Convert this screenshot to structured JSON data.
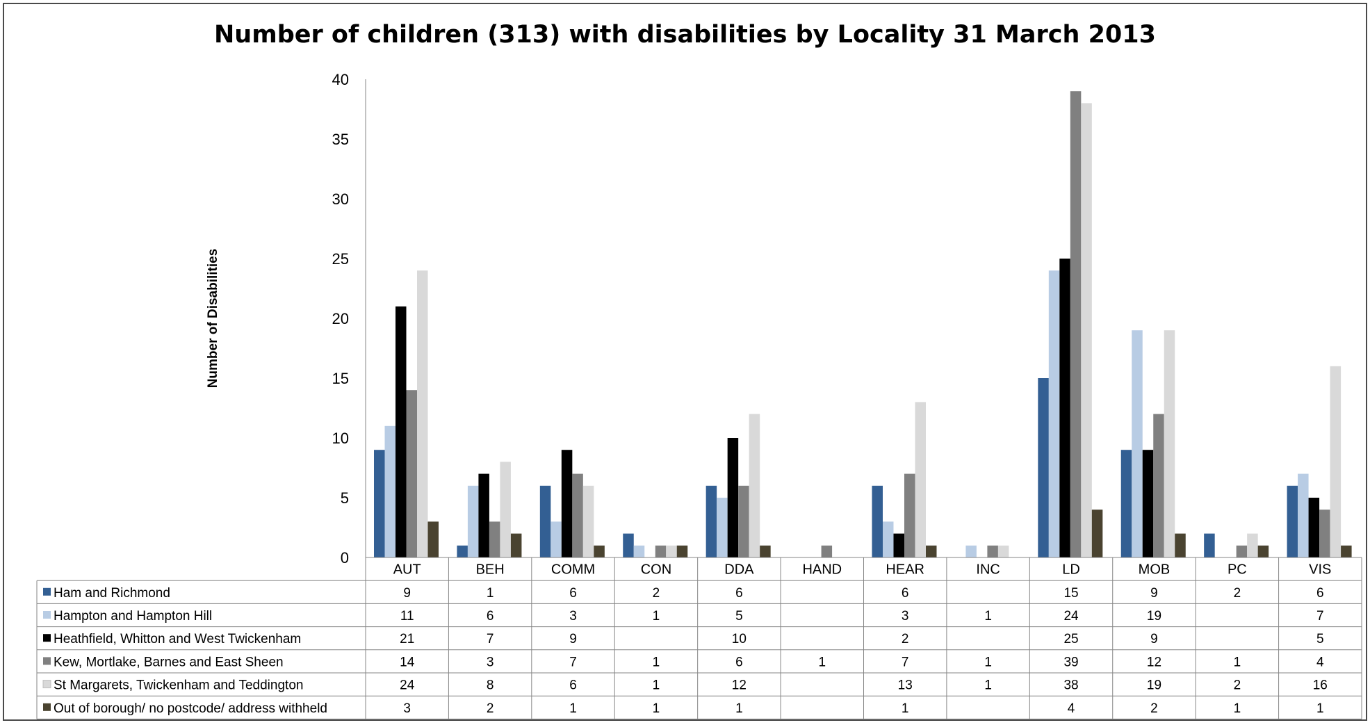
{
  "chart_data": {
    "type": "bar",
    "title": "Number of children (313) with disabilities by Locality 31 March 2013",
    "xlabel": "",
    "ylabel": "Number of Disabilities",
    "ylim": [
      0,
      40
    ],
    "yticks": [
      "0",
      "5",
      "10",
      "15",
      "20",
      "25",
      "30",
      "35",
      "40"
    ],
    "grid": false,
    "legend": "data-table",
    "categories": [
      "AUT",
      "BEH",
      "COMM",
      "CON",
      "DDA",
      "HAND",
      "HEAR",
      "INC",
      "LD",
      "MOB",
      "PC",
      "VIS"
    ],
    "series": [
      {
        "name": "Ham and Richmond",
        "color": "#335f93",
        "values": [
          9,
          1,
          6,
          2,
          6,
          null,
          6,
          null,
          15,
          9,
          2,
          6
        ]
      },
      {
        "name": "Hampton and Hampton Hill",
        "color": "#b8cce4",
        "values": [
          11,
          6,
          3,
          1,
          5,
          null,
          3,
          1,
          24,
          19,
          null,
          7
        ]
      },
      {
        "name": "Heathfield, Whitton and West Twickenham",
        "color": "#000000",
        "values": [
          21,
          7,
          9,
          null,
          10,
          null,
          2,
          null,
          25,
          9,
          null,
          5
        ]
      },
      {
        "name": "Kew, Mortlake, Barnes and East Sheen",
        "color": "#808080",
        "values": [
          14,
          3,
          7,
          1,
          6,
          1,
          7,
          1,
          39,
          12,
          1,
          4
        ]
      },
      {
        "name": "St Margarets, Twickenham and Teddington",
        "color": "#d9d9d9",
        "values": [
          24,
          8,
          6,
          1,
          12,
          null,
          13,
          1,
          38,
          19,
          2,
          16
        ]
      },
      {
        "name": "Out of borough/ no postcode/ address withheld",
        "color": "#4a4330",
        "values": [
          3,
          2,
          1,
          1,
          1,
          null,
          1,
          null,
          4,
          2,
          1,
          1
        ]
      }
    ]
  }
}
